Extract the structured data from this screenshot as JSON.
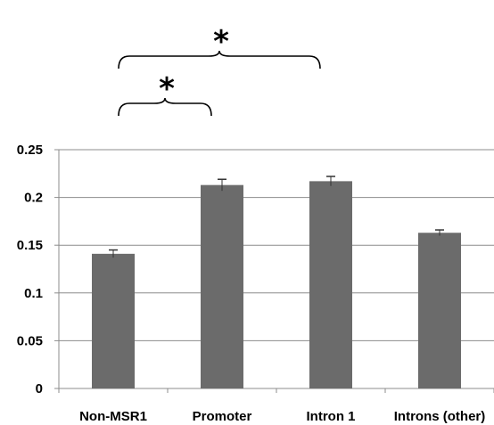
{
  "chart_data": {
    "type": "bar",
    "categories": [
      "Non-MSR1",
      "Promoter",
      "Intron 1",
      "Introns (other)"
    ],
    "values": [
      0.141,
      0.213,
      0.217,
      0.163
    ],
    "errors": [
      0.004,
      0.006,
      0.005,
      0.003
    ],
    "ylim": [
      0,
      0.25
    ],
    "yticks": [
      "0",
      "0.05",
      "0.1",
      "0.15",
      "0.2",
      "0.25"
    ],
    "grid": true,
    "bar_color": "#6b6b6b",
    "significance": [
      {
        "from": "Non-MSR1",
        "to": "Promoter",
        "label": "*"
      },
      {
        "from": "Non-MSR1",
        "to": "Intron 1",
        "label": "*"
      }
    ]
  }
}
